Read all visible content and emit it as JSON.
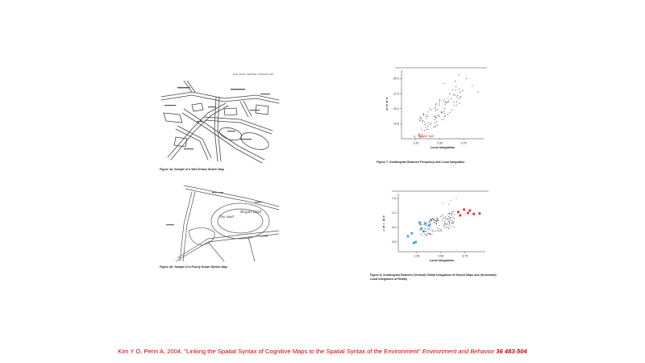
{
  "fig_map_top": {
    "header": "Kim, Penn | SPATIAL SYNTAX   491",
    "caption": "Figure 4a: Sample of a Well-Drawn Sketch Map"
  },
  "fig_map_bottom": {
    "caption": "Figure 4b: Sample of a Poorly Drawn Sketch Map",
    "hand_text_1": "Royal Hall",
    "hand_text_2": "The Mall"
  },
  "chart_data": [
    {
      "type": "scatter",
      "title": "",
      "caption": "Figure 7: Scattergram Between Frequency and Local Integration",
      "xlabel": "Local Integration",
      "ylabel": "FREQ",
      "xticks": [
        "1.25",
        "2.50",
        "3.75"
      ],
      "yticks": [
        "12.5",
        "25.0",
        "37.5",
        "50.0"
      ],
      "xlim": [
        0.5,
        4.8
      ],
      "ylim": [
        0,
        57
      ],
      "annotation": "Experim. et al."
    },
    {
      "type": "scatter",
      "title": "",
      "caption": "Figure 8: Scattergram Between (Vertical) Global Integration of Sketch Maps and (Horizontal) Local Integration of Reality",
      "xlabel": "Local Integration",
      "ylabel": "S M I N T",
      "xticks": [
        "1.25",
        "2.50",
        "3.75"
      ],
      "yticks": [
        "0.6",
        "0.9",
        "1.2",
        "1.5"
      ],
      "xlim": [
        0.3,
        4.8
      ],
      "ylim": [
        0.4,
        1.6
      ]
    }
  ],
  "citation": {
    "main": "Kim Y O, Penn A, 2004, \"Linking the Spatial Syntax of Cognitive Maps to the Spatial Syntax of the Environment\" ",
    "journal": "Environment and Behavior",
    "volume": " 36 483-504"
  },
  "colors": {
    "citation": "#c00000",
    "highlight_red": "#e03030",
    "highlight_blue": "#3aa0d8"
  }
}
